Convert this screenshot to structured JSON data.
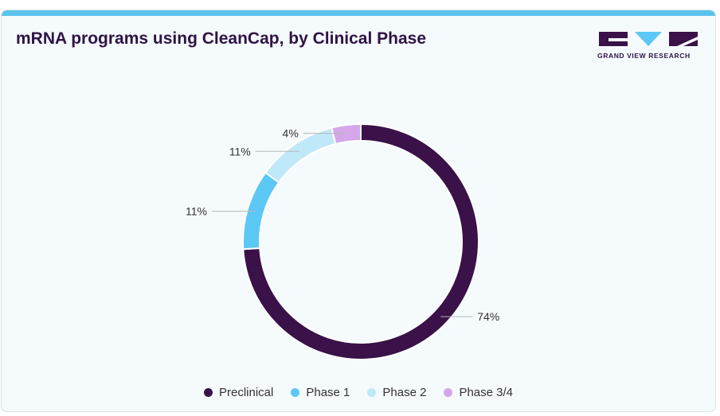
{
  "header": {
    "title": "mRNA programs using CleanCap, by Clinical Phase",
    "logo_text": "GRAND VIEW RESEARCH"
  },
  "colors": {
    "accent_bar": "#5bc3eb",
    "background": "#f5fafc",
    "title": "#2e1446"
  },
  "chart_data": {
    "type": "pie",
    "style": "donut",
    "title": "mRNA programs using CleanCap, by Clinical Phase",
    "legend_position": "bottom",
    "categories": [
      "Preclinical",
      "Phase 1",
      "Phase 2",
      "Phase 3/4"
    ],
    "values": [
      74,
      11,
      11,
      4
    ],
    "labels": [
      "74%",
      "11%",
      "11%",
      "4%"
    ],
    "colors": [
      "#3a1148",
      "#5bc8f5",
      "#bfe8f9",
      "#d6a6ea"
    ]
  }
}
